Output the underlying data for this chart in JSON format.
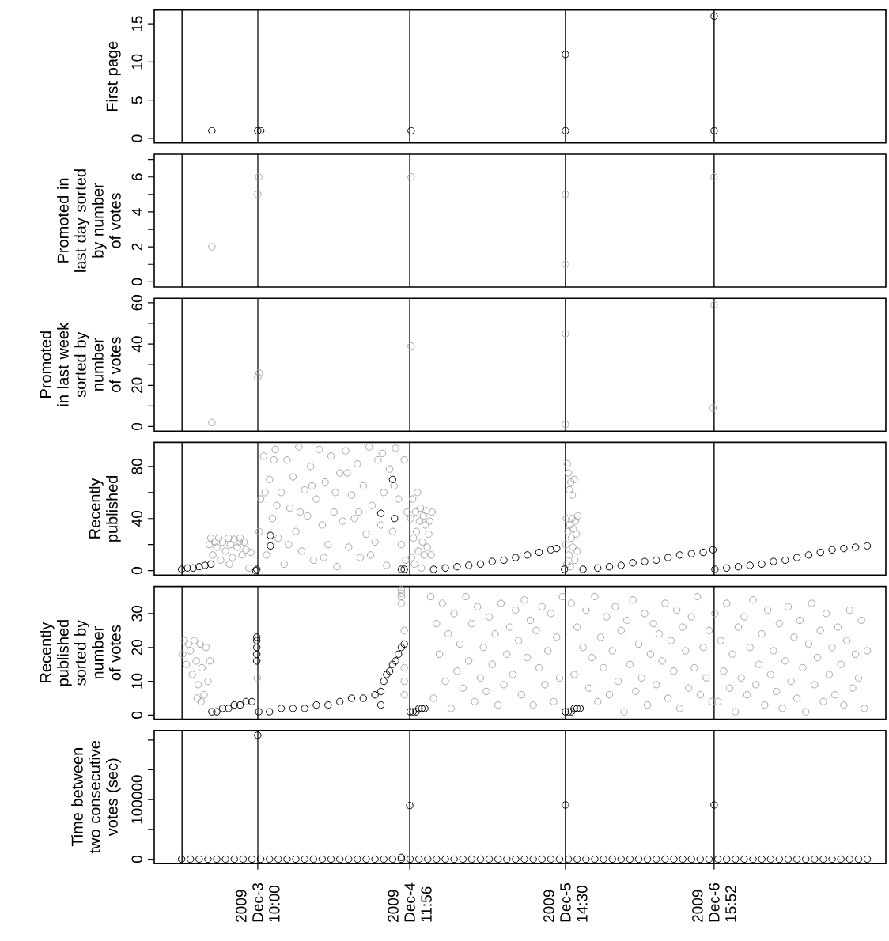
{
  "chart_data": [
    {
      "type": "scatter",
      "ylabel": "First page",
      "xlim": [
        "2009-12-02T16:20",
        "2009-12-07T21:10"
      ],
      "ylim": [
        -0.6,
        16.8
      ],
      "yticks": [
        0,
        5,
        10,
        15
      ],
      "tick_labels": "y",
      "marker": "circle",
      "ref_lines": [
        {
          "axis": "x",
          "value": "2009-12-02T21:05"
        },
        {
          "axis": "x",
          "value": "2009-12-03T10:00"
        },
        {
          "axis": "x",
          "value": "2009-12-04T11:56"
        },
        {
          "axis": "x",
          "value": "2009-12-05T14:30"
        },
        {
          "axis": "x",
          "value": "2009-12-06T15:52"
        }
      ],
      "series": [
        {
          "color": "#000000",
          "x": [
            "2009-12-03T02:10",
            "2009-12-03T10:00",
            "2009-12-03T10:30",
            "2009-12-04T12:10",
            "2009-12-05T14:30",
            "2009-12-05T14:30",
            "2009-12-06T15:52",
            "2009-12-06T15:52"
          ],
          "values": [
            1,
            1,
            1,
            1,
            1,
            11,
            1,
            16
          ]
        }
      ]
    },
    {
      "type": "scatter",
      "ylabel": "Promoted in last day sorted by number of votes",
      "xlim": [
        "2009-12-02T16:20",
        "2009-12-07T21:10"
      ],
      "ylim": [
        -0.3,
        7.3
      ],
      "yticks": [
        0,
        {
          "value": 1,
          "label": null
        },
        2,
        {
          "value": 3,
          "label": null
        },
        4,
        {
          "value": 5,
          "label": null
        },
        6,
        {
          "value": 7,
          "label": null
        }
      ],
      "tick_labels": "y",
      "marker": "circle",
      "ref_lines": [
        {
          "axis": "x",
          "value": "2009-12-02T21:05"
        },
        {
          "axis": "x",
          "value": "2009-12-03T10:00"
        },
        {
          "axis": "x",
          "value": "2009-12-04T11:56"
        },
        {
          "axis": "x",
          "value": "2009-12-05T14:30"
        },
        {
          "axis": "x",
          "value": "2009-12-06T15:52"
        }
      ],
      "series": [
        {
          "color": "#a6a6a6",
          "x": [
            "2009-12-03T02:10",
            "2009-12-03T10:00",
            "2009-12-03T10:10",
            "2009-12-04T12:10",
            "2009-12-05T14:30",
            "2009-12-05T14:30",
            "2009-12-06T15:52"
          ],
          "values": [
            2,
            5,
            6,
            6,
            5,
            1,
            6
          ]
        }
      ]
    },
    {
      "type": "scatter",
      "ylabel": "Promoted in last week sorted by number of votes",
      "xlim": [
        "2009-12-02T16:20",
        "2009-12-07T21:10"
      ],
      "ylim": [
        -2.2,
        62.2
      ],
      "yticks": [
        0,
        {
          "value": 10,
          "label": null
        },
        20,
        {
          "value": 30,
          "label": null
        },
        40,
        {
          "value": 50,
          "label": null
        },
        60
      ],
      "tick_labels": "y",
      "marker": "circle",
      "ref_lines": [
        {
          "axis": "x",
          "value": "2009-12-02T21:05"
        },
        {
          "axis": "x",
          "value": "2009-12-03T10:00"
        },
        {
          "axis": "x",
          "value": "2009-12-04T11:56"
        },
        {
          "axis": "x",
          "value": "2009-12-05T14:30"
        },
        {
          "axis": "x",
          "value": "2009-12-06T15:52"
        }
      ],
      "series": [
        {
          "color": "#a6a6a6",
          "x": [
            "2009-12-03T02:10",
            "2009-12-03T10:00",
            "2009-12-03T10:15",
            "2009-12-04T12:10",
            "2009-12-05T14:30",
            "2009-12-05T14:30",
            "2009-12-06T15:40",
            "2009-12-06T15:52"
          ],
          "values": [
            2,
            24,
            26,
            39,
            45,
            1,
            9,
            59
          ]
        }
      ]
    },
    {
      "type": "scatter",
      "ylabel": "Recently published",
      "xlim": [
        "2009-12-02T16:20",
        "2009-12-07T21:10"
      ],
      "ylim": [
        -3.5,
        98.5
      ],
      "yticks": [
        0,
        {
          "value": 20,
          "label": null
        },
        40,
        {
          "value": 60,
          "label": null
        },
        80
      ],
      "tick_labels": "y",
      "marker": "circle",
      "ref_lines": [
        {
          "axis": "x",
          "value": "2009-12-02T21:05"
        },
        {
          "axis": "x",
          "value": "2009-12-03T10:00"
        },
        {
          "axis": "x",
          "value": "2009-12-04T11:56"
        },
        {
          "axis": "x",
          "value": "2009-12-05T14:30"
        },
        {
          "axis": "x",
          "value": "2009-12-06T15:52"
        }
      ],
      "series": [
        {
          "color": "#a6a6a6",
          "x": [
            "2009-12-03T01:45",
            "2009-12-03T02:00",
            "2009-12-03T02:20",
            "2009-12-03T02:40",
            "2009-12-03T03:00",
            "2009-12-03T03:20",
            "2009-12-03T03:40",
            "2009-12-03T04:00",
            "2009-12-03T04:30",
            "2009-12-03T05:00",
            "2009-12-03T05:10",
            "2009-12-03T05:20",
            "2009-12-03T05:40",
            "2009-12-03T06:00",
            "2009-12-03T06:30",
            "2009-12-03T06:50",
            "2009-12-03T07:00",
            "2009-12-03T07:20",
            "2009-12-03T07:40",
            "2009-12-03T08:00",
            "2009-12-03T08:30",
            "2009-12-03T08:50",
            "2009-12-03T10:15",
            "2009-12-03T10:30",
            "2009-12-03T11:00",
            "2009-12-03T11:15",
            "2009-12-03T11:30",
            "2009-12-03T12:00",
            "2009-12-03T12:30",
            "2009-12-03T12:45",
            "2009-12-03T13:00",
            "2009-12-03T13:15",
            "2009-12-03T13:30",
            "2009-12-03T14:00",
            "2009-12-03T14:30",
            "2009-12-03T15:00",
            "2009-12-03T15:15",
            "2009-12-03T15:30",
            "2009-12-03T16:00",
            "2009-12-03T16:30",
            "2009-12-03T17:00",
            "2009-12-03T17:15",
            "2009-12-03T17:30",
            "2009-12-03T18:00",
            "2009-12-03T18:30",
            "2009-12-03T19:00",
            "2009-12-03T19:15",
            "2009-12-03T19:30",
            "2009-12-03T20:00",
            "2009-12-03T20:30",
            "2009-12-03T21:00",
            "2009-12-03T21:15",
            "2009-12-03T21:30",
            "2009-12-03T22:00",
            "2009-12-03T22:30",
            "2009-12-03T23:00",
            "2009-12-03T23:15",
            "2009-12-03T23:30",
            "2009-12-04T00:00",
            "2009-12-04T00:30",
            "2009-12-04T01:00",
            "2009-12-04T01:15",
            "2009-12-04T01:30",
            "2009-12-04T02:00",
            "2009-12-04T02:30",
            "2009-12-04T03:00",
            "2009-12-04T03:15",
            "2009-12-04T03:30",
            "2009-12-04T04:00",
            "2009-12-04T04:30",
            "2009-12-04T05:00",
            "2009-12-04T05:15",
            "2009-12-04T05:30",
            "2009-12-04T06:00",
            "2009-12-04T06:30",
            "2009-12-04T07:00",
            "2009-12-04T07:15",
            "2009-12-04T07:30",
            "2009-12-04T08:00",
            "2009-12-04T08:30",
            "2009-12-04T09:00",
            "2009-12-04T09:15",
            "2009-12-04T09:30",
            "2009-12-04T10:00",
            "2009-12-04T10:30",
            "2009-12-04T11:00",
            "2009-12-04T11:15",
            "2009-12-04T11:30",
            "2009-12-04T12:05",
            "2009-12-04T12:15",
            "2009-12-04T12:25",
            "2009-12-04T12:35",
            "2009-12-04T12:45",
            "2009-12-04T12:55",
            "2009-12-04T13:05",
            "2009-12-04T13:15",
            "2009-12-04T13:25",
            "2009-12-04T13:35",
            "2009-12-04T13:45",
            "2009-12-04T13:55",
            "2009-12-04T14:05",
            "2009-12-04T14:15",
            "2009-12-04T14:25",
            "2009-12-04T14:35",
            "2009-12-04T14:45",
            "2009-12-04T14:55",
            "2009-12-04T15:10",
            "2009-12-04T15:20",
            "2009-12-04T15:35",
            "2009-12-04T15:45",
            "2009-12-05T14:35",
            "2009-12-05T14:40",
            "2009-12-05T14:45",
            "2009-12-05T14:50",
            "2009-12-05T14:55",
            "2009-12-05T15:00",
            "2009-12-05T15:05",
            "2009-12-05T15:10",
            "2009-12-05T15:15",
            "2009-12-05T15:20",
            "2009-12-05T15:25",
            "2009-12-05T15:30",
            "2009-12-05T15:35",
            "2009-12-05T15:40",
            "2009-12-05T15:45",
            "2009-12-05T15:50",
            "2009-12-05T16:00",
            "2009-12-05T16:05",
            "2009-12-05T16:10",
            "2009-12-05T16:20",
            "2009-12-05T16:30",
            "2009-12-05T16:35"
          ],
          "values": [
            20,
            25,
            12,
            22,
            18,
            25,
            8,
            22,
            15,
            25,
            5,
            20,
            10,
            24,
            18,
            22,
            25,
            12,
            22,
            16,
            2,
            14,
            30,
            55,
            88,
            60,
            12,
            70,
            40,
            85,
            93,
            50,
            25,
            60,
            5,
            85,
            20,
            48,
            72,
            30,
            95,
            45,
            15,
            62,
            42,
            80,
            65,
            8,
            55,
            93,
            35,
            10,
            68,
            20,
            88,
            45,
            60,
            3,
            75,
            38,
            92,
            75,
            18,
            58,
            40,
            82,
            45,
            10,
            65,
            28,
            95,
            12,
            50,
            22,
            85,
            35,
            90,
            60,
            4,
            78,
            30,
            65,
            94,
            55,
            20,
            85,
            8,
            45,
            40,
            10,
            55,
            25,
            5,
            45,
            30,
            60,
            15,
            38,
            48,
            2,
            22,
            42,
            12,
            35,
            46,
            18,
            28,
            38,
            12,
            45,
            20,
            40,
            5,
            82,
            30,
            75,
            12,
            62,
            35,
            3,
            68,
            25,
            40,
            58,
            18,
            32,
            70,
            8,
            38,
            28,
            15,
            42
          ]
        },
        {
          "color": "#000000",
          "x": [
            "2009-12-02T21:00",
            "2009-12-02T22:00",
            "2009-12-02T23:00",
            "2009-12-03T00:00",
            "2009-12-03T01:00",
            "2009-12-03T02:00",
            "2009-12-03T09:40",
            "2009-12-03T09:50",
            "2009-12-03T12:10",
            "2009-12-03T12:10",
            "2009-12-04T07:00",
            "2009-12-04T09:00",
            "2009-12-04T09:20",
            "2009-12-04T10:30",
            "2009-12-04T11:00",
            "2009-12-04T16:00",
            "2009-12-04T18:00",
            "2009-12-04T20:00",
            "2009-12-04T22:00",
            "2009-12-05T00:00",
            "2009-12-05T02:00",
            "2009-12-05T04:00",
            "2009-12-05T06:00",
            "2009-12-05T08:00",
            "2009-12-05T10:00",
            "2009-12-05T12:00",
            "2009-12-05T13:00",
            "2009-12-05T14:20",
            "2009-12-05T17:30",
            "2009-12-05T20:00",
            "2009-12-05T22:00",
            "2009-12-06T00:00",
            "2009-12-06T02:00",
            "2009-12-06T04:00",
            "2009-12-06T06:00",
            "2009-12-06T08:00",
            "2009-12-06T10:00",
            "2009-12-06T12:00",
            "2009-12-06T14:00",
            "2009-12-06T15:40",
            "2009-12-06T16:00",
            "2009-12-06T18:00",
            "2009-12-06T20:00",
            "2009-12-06T22:00",
            "2009-12-07T00:00",
            "2009-12-07T02:00",
            "2009-12-07T04:00",
            "2009-12-07T06:00",
            "2009-12-07T08:00",
            "2009-12-07T10:00",
            "2009-12-07T12:00",
            "2009-12-07T14:00",
            "2009-12-07T16:00",
            "2009-12-07T18:00"
          ],
          "values": [
            1,
            2,
            2,
            3,
            4,
            5,
            0,
            1,
            27,
            19,
            44,
            70,
            40,
            1,
            1,
            1,
            2,
            3,
            4,
            5,
            7,
            8,
            10,
            12,
            14,
            16,
            17,
            1,
            1,
            2,
            3,
            4,
            6,
            7,
            8,
            10,
            12,
            13,
            14,
            16,
            1,
            2,
            3,
            4,
            5,
            7,
            8,
            10,
            12,
            14,
            16,
            17,
            18,
            19
          ]
        }
      ]
    },
    {
      "type": "scatter",
      "ylabel": "Recently published sorted by number of votes",
      "xlim": [
        "2009-12-02T16:20",
        "2009-12-07T21:10"
      ],
      "ylim": [
        -1.2,
        38
      ],
      "yticks": [
        0,
        10,
        20,
        30
      ],
      "tick_labels": "y",
      "marker": "circle",
      "ref_lines": [
        {
          "axis": "x",
          "value": "2009-12-02T21:05"
        },
        {
          "axis": "x",
          "value": "2009-12-03T10:00"
        },
        {
          "axis": "x",
          "value": "2009-12-04T11:56"
        },
        {
          "axis": "x",
          "value": "2009-12-05T14:30"
        },
        {
          "axis": "x",
          "value": "2009-12-06T15:52"
        }
      ],
      "series": [
        {
          "color": "#a6a6a6",
          "x": [
            "2009-12-02T21:10",
            "2009-12-02T21:30",
            "2009-12-02T21:50",
            "2009-12-02T22:10",
            "2009-12-02T22:30",
            "2009-12-02T22:50",
            "2009-12-02T23:10",
            "2009-12-02T23:30",
            "2009-12-02T23:40",
            "2009-12-02T23:50",
            "2009-12-03T00:10",
            "2009-12-03T00:20",
            "2009-12-03T00:30",
            "2009-12-03T00:50",
            "2009-12-03T01:10",
            "2009-12-03T01:30",
            "2009-12-03T01:50",
            "2009-12-03T09:55",
            "2009-12-04T10:30",
            "2009-12-04T10:30",
            "2009-12-04T10:30",
            "2009-12-04T10:30",
            "2009-12-04T11:00",
            "2009-12-04T11:00",
            "2009-12-04T11:00",
            "2009-12-04T11:00",
            "2009-12-04T15:30",
            "2009-12-04T16:00",
            "2009-12-04T16:30",
            "2009-12-04T17:00",
            "2009-12-04T17:30",
            "2009-12-04T18:00",
            "2009-12-04T18:30",
            "2009-12-04T19:00",
            "2009-12-04T19:30",
            "2009-12-04T20:00",
            "2009-12-04T20:30",
            "2009-12-04T21:00",
            "2009-12-04T21:30",
            "2009-12-04T22:00",
            "2009-12-04T22:30",
            "2009-12-04T23:00",
            "2009-12-04T23:30",
            "2009-12-05T00:00",
            "2009-12-05T00:30",
            "2009-12-05T01:00",
            "2009-12-05T01:30",
            "2009-12-05T02:00",
            "2009-12-05T02:30",
            "2009-12-05T03:00",
            "2009-12-05T03:30",
            "2009-12-05T04:00",
            "2009-12-05T04:30",
            "2009-12-05T05:00",
            "2009-12-05T05:30",
            "2009-12-05T06:00",
            "2009-12-05T06:30",
            "2009-12-05T07:00",
            "2009-12-05T07:30",
            "2009-12-05T08:00",
            "2009-12-05T08:30",
            "2009-12-05T09:00",
            "2009-12-05T09:30",
            "2009-12-05T10:00",
            "2009-12-05T10:30",
            "2009-12-05T11:00",
            "2009-12-05T11:30",
            "2009-12-05T12:00",
            "2009-12-05T12:30",
            "2009-12-05T13:00",
            "2009-12-05T13:30",
            "2009-12-05T14:00",
            "2009-12-05T15:30",
            "2009-12-05T16:00",
            "2009-12-05T16:30",
            "2009-12-05T17:00",
            "2009-12-05T17:30",
            "2009-12-05T18:00",
            "2009-12-05T18:30",
            "2009-12-05T19:00",
            "2009-12-05T19:30",
            "2009-12-05T20:00",
            "2009-12-05T20:30",
            "2009-12-05T21:00",
            "2009-12-05T21:30",
            "2009-12-05T22:00",
            "2009-12-05T22:30",
            "2009-12-05T23:00",
            "2009-12-05T23:30",
            "2009-12-06T00:00",
            "2009-12-06T00:30",
            "2009-12-06T01:00",
            "2009-12-06T01:30",
            "2009-12-06T02:00",
            "2009-12-06T02:30",
            "2009-12-06T03:00",
            "2009-12-06T03:30",
            "2009-12-06T04:00",
            "2009-12-06T04:30",
            "2009-12-06T05:00",
            "2009-12-06T05:30",
            "2009-12-06T06:00",
            "2009-12-06T06:30",
            "2009-12-06T07:00",
            "2009-12-06T07:30",
            "2009-12-06T08:00",
            "2009-12-06T08:30",
            "2009-12-06T09:00",
            "2009-12-06T09:30",
            "2009-12-06T10:00",
            "2009-12-06T10:30",
            "2009-12-06T11:00",
            "2009-12-06T11:30",
            "2009-12-06T12:00",
            "2009-12-06T12:30",
            "2009-12-06T13:00",
            "2009-12-06T13:30",
            "2009-12-06T14:00",
            "2009-12-06T14:30",
            "2009-12-06T15:00",
            "2009-12-06T15:30",
            "2009-12-06T16:00",
            "2009-12-06T16:30",
            "2009-12-06T17:00",
            "2009-12-06T17:30",
            "2009-12-06T18:00",
            "2009-12-06T18:30",
            "2009-12-06T19:00",
            "2009-12-06T19:30",
            "2009-12-06T20:00",
            "2009-12-06T20:30",
            "2009-12-06T21:00",
            "2009-12-06T21:30",
            "2009-12-06T22:00",
            "2009-12-06T22:30",
            "2009-12-06T23:00",
            "2009-12-06T23:30",
            "2009-12-07T00:00",
            "2009-12-07T00:30",
            "2009-12-07T01:00",
            "2009-12-07T01:30",
            "2009-12-07T02:00",
            "2009-12-07T02:30",
            "2009-12-07T03:00",
            "2009-12-07T03:30",
            "2009-12-07T04:00",
            "2009-12-07T04:30",
            "2009-12-07T05:00",
            "2009-12-07T05:30",
            "2009-12-07T06:00",
            "2009-12-07T06:30",
            "2009-12-07T07:00",
            "2009-12-07T07:30",
            "2009-12-07T08:00",
            "2009-12-07T08:30",
            "2009-12-07T09:00",
            "2009-12-07T09:30",
            "2009-12-07T10:00",
            "2009-12-07T10:30",
            "2009-12-07T11:00",
            "2009-12-07T11:30",
            "2009-12-07T12:00",
            "2009-12-07T12:30",
            "2009-12-07T13:00",
            "2009-12-07T13:30",
            "2009-12-07T14:00",
            "2009-12-07T14:30",
            "2009-12-07T15:00",
            "2009-12-07T15:30",
            "2009-12-07T16:00",
            "2009-12-07T16:30",
            "2009-12-07T17:00",
            "2009-12-07T17:30",
            "2009-12-07T18:00"
          ],
          "values": [
            18,
            22,
            15,
            21,
            19,
            12,
            22,
            16,
            5,
            9,
            21,
            4,
            14,
            6,
            20,
            10,
            16,
            11,
            37,
            36,
            35,
            33,
            25,
            14,
            10,
            6,
            35,
            5,
            27,
            18,
            33,
            10,
            24,
            2,
            30,
            13,
            21,
            8,
            35,
            16,
            27,
            4,
            32,
            11,
            20,
            7,
            29,
            15,
            24,
            3,
            33,
            9,
            18,
            26,
            12,
            31,
            22,
            6,
            34,
            17,
            28,
            3,
            25,
            14,
            32,
            9,
            19,
            30,
            4,
            23,
            11,
            35,
            33,
            12,
            26,
            2,
            20,
            31,
            8,
            17,
            35,
            4,
            23,
            14,
            29,
            6,
            19,
            32,
            10,
            25,
            1,
            28,
            15,
            34,
            7,
            21,
            11,
            30,
            3,
            18,
            27,
            9,
            24,
            16,
            33,
            5,
            22,
            13,
            31,
            2,
            26,
            19,
            8,
            29,
            14,
            35,
            6,
            20,
            11,
            25,
            4,
            30,
            4,
            22,
            13,
            33,
            8,
            18,
            1,
            26,
            11,
            29,
            6,
            20,
            34,
            9,
            15,
            24,
            3,
            31,
            12,
            19,
            7,
            27,
            2,
            16,
            32,
            10,
            23,
            5,
            28,
            14,
            1,
            21,
            33,
            9,
            17,
            25,
            4,
            30,
            12,
            20,
            6,
            26,
            15,
            3,
            22,
            31,
            8,
            18,
            11,
            28,
            2,
            19
          ]
        },
        {
          "color": "#000000",
          "x": [
            "2009-12-03T02:10",
            "2009-12-03T03:00",
            "2009-12-03T04:00",
            "2009-12-03T05:00",
            "2009-12-03T06:00",
            "2009-12-03T07:00",
            "2009-12-03T08:00",
            "2009-12-03T09:00",
            "2009-12-03T09:50",
            "2009-12-03T09:50",
            "2009-12-03T09:50",
            "2009-12-03T09:50",
            "2009-12-03T09:50",
            "2009-12-03T10:10",
            "2009-12-03T12:00",
            "2009-12-03T14:00",
            "2009-12-03T16:00",
            "2009-12-03T18:00",
            "2009-12-03T20:00",
            "2009-12-03T22:00",
            "2009-12-04T00:00",
            "2009-12-04T02:00",
            "2009-12-04T04:00",
            "2009-12-04T06:00",
            "2009-12-04T07:00",
            "2009-12-04T07:00",
            "2009-12-04T07:30",
            "2009-12-04T08:00",
            "2009-12-04T08:30",
            "2009-12-04T09:00",
            "2009-12-04T09:30",
            "2009-12-04T10:00",
            "2009-12-04T10:30",
            "2009-12-04T11:00",
            "2009-12-04T12:00",
            "2009-12-04T12:30",
            "2009-12-04T13:00",
            "2009-12-04T13:30",
            "2009-12-04T14:00",
            "2009-12-04T14:30",
            "2009-12-05T14:30",
            "2009-12-05T15:00",
            "2009-12-05T15:30",
            "2009-12-05T16:00",
            "2009-12-05T16:30",
            "2009-12-05T17:00"
          ],
          "values": [
            1,
            1,
            2,
            2,
            3,
            3,
            4,
            4,
            23,
            22,
            20,
            18,
            16,
            1,
            1,
            2,
            2,
            2,
            3,
            3,
            4,
            5,
            5,
            6,
            7,
            3,
            10,
            12,
            13,
            15,
            16,
            18,
            20,
            21,
            1,
            1,
            1,
            2,
            2,
            2,
            1,
            1,
            1,
            2,
            2,
            2
          ]
        }
      ]
    },
    {
      "type": "scatter",
      "ylabel": "Time between two consecutive votes (sec)",
      "xlim": [
        "2009-12-02T16:20",
        "2009-12-07T21:10"
      ],
      "ylim": [
        -7000,
        216000
      ],
      "yticks": [
        0,
        {
          "value": 50000,
          "label": null
        },
        100000,
        {
          "value": 150000,
          "label": null
        },
        {
          "value": 200000,
          "label": null
        }
      ],
      "marker": "circle",
      "xticks": [
        {
          "value": "2009-12-03T10:00",
          "label": "2009 Dec-3 10:00"
        },
        {
          "value": "2009-12-04T11:56",
          "label": "2009 Dec-4 11:56"
        },
        {
          "value": "2009-12-05T14:30",
          "label": "2009 Dec-5 14:30"
        },
        {
          "value": "2009-12-06T15:52",
          "label": "2009 Dec-6 15:52"
        }
      ],
      "ref_lines": [
        {
          "axis": "x",
          "value": "2009-12-02T21:05"
        },
        {
          "axis": "x",
          "value": "2009-12-03T10:00"
        },
        {
          "axis": "x",
          "value": "2009-12-04T11:56"
        },
        {
          "axis": "x",
          "value": "2009-12-05T14:30"
        },
        {
          "axis": "x",
          "value": "2009-12-06T15:52"
        }
      ],
      "series": [
        {
          "color": "#000000",
          "x": [
            "2009-12-02T21:00",
            "2009-12-02T22:30",
            "2009-12-03T00:00",
            "2009-12-03T01:30",
            "2009-12-03T03:00",
            "2009-12-03T04:30",
            "2009-12-03T06:00",
            "2009-12-03T07:30",
            "2009-12-03T09:00",
            "2009-12-03T10:30",
            "2009-12-03T12:00",
            "2009-12-03T13:30",
            "2009-12-03T15:00",
            "2009-12-03T16:30",
            "2009-12-03T18:00",
            "2009-12-03T19:30",
            "2009-12-03T21:00",
            "2009-12-03T22:30",
            "2009-12-04T00:00",
            "2009-12-04T01:30",
            "2009-12-04T03:00",
            "2009-12-04T04:30",
            "2009-12-04T06:00",
            "2009-12-04T07:30",
            "2009-12-04T09:00",
            "2009-12-04T10:30",
            "2009-12-04T12:00",
            "2009-12-04T13:30",
            "2009-12-04T15:00",
            "2009-12-04T16:30",
            "2009-12-04T18:00",
            "2009-12-04T19:30",
            "2009-12-04T21:00",
            "2009-12-04T22:30",
            "2009-12-05T00:00",
            "2009-12-05T01:30",
            "2009-12-05T03:00",
            "2009-12-05T04:30",
            "2009-12-05T06:00",
            "2009-12-05T07:30",
            "2009-12-05T09:00",
            "2009-12-05T10:30",
            "2009-12-05T12:00",
            "2009-12-05T13:30",
            "2009-12-05T15:00",
            "2009-12-05T16:30",
            "2009-12-05T18:00",
            "2009-12-05T19:30",
            "2009-12-05T21:00",
            "2009-12-05T22:30",
            "2009-12-06T00:00",
            "2009-12-06T01:30",
            "2009-12-06T03:00",
            "2009-12-06T04:30",
            "2009-12-06T06:00",
            "2009-12-06T07:30",
            "2009-12-06T09:00",
            "2009-12-06T10:30",
            "2009-12-06T12:00",
            "2009-12-06T13:30",
            "2009-12-06T15:00",
            "2009-12-06T16:30",
            "2009-12-06T18:00",
            "2009-12-06T19:30",
            "2009-12-06T21:00",
            "2009-12-06T22:30",
            "2009-12-07T00:00",
            "2009-12-07T01:30",
            "2009-12-07T03:00",
            "2009-12-07T04:30",
            "2009-12-07T06:00",
            "2009-12-07T07:30",
            "2009-12-07T09:00",
            "2009-12-07T10:30",
            "2009-12-07T12:00",
            "2009-12-07T13:30",
            "2009-12-07T15:00",
            "2009-12-07T16:30",
            "2009-12-07T18:00",
            "2009-12-03T10:00",
            "2009-12-04T10:30",
            "2009-12-04T11:56",
            "2009-12-05T14:30",
            "2009-12-06T15:52"
          ],
          "values": [
            0,
            0,
            0,
            0,
            0,
            0,
            0,
            0,
            0,
            0,
            0,
            0,
            0,
            0,
            0,
            0,
            0,
            0,
            0,
            0,
            0,
            0,
            0,
            0,
            0,
            0,
            0,
            0,
            0,
            0,
            0,
            0,
            0,
            0,
            0,
            0,
            0,
            0,
            0,
            0,
            0,
            0,
            0,
            0,
            0,
            0,
            0,
            0,
            0,
            0,
            0,
            0,
            0,
            0,
            0,
            0,
            0,
            0,
            0,
            0,
            0,
            0,
            0,
            0,
            0,
            0,
            0,
            0,
            0,
            0,
            0,
            0,
            0,
            0,
            0,
            0,
            0,
            0,
            0,
            208000,
            3000,
            90000,
            91000,
            91000
          ]
        }
      ]
    }
  ]
}
